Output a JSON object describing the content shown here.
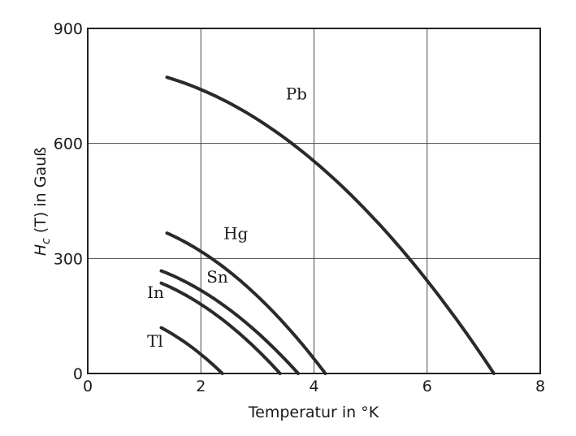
{
  "chart_data": {
    "type": "line",
    "title": "",
    "xlabel": "Temperatur in °K",
    "ylabel_parts": {
      "h": "H",
      "sub": "c",
      "t": " (T)",
      "unit": " in Gauß"
    },
    "xlim": [
      0,
      8
    ],
    "ylim": [
      0,
      900
    ],
    "xticks": [
      0,
      2,
      4,
      6,
      8
    ],
    "yticks": [
      0,
      300,
      600,
      900
    ],
    "grid": true,
    "legend": "none",
    "series": [
      {
        "name": "Pb",
        "tc": 7.18,
        "h0": 803,
        "x_start": 1.4
      },
      {
        "name": "Hg",
        "tc": 4.2,
        "h0": 412,
        "x_start": 1.4
      },
      {
        "name": "Sn",
        "tc": 3.72,
        "h0": 305,
        "x_start": 1.3
      },
      {
        "name": "In",
        "tc": 3.4,
        "h0": 276,
        "x_start": 1.3
      },
      {
        "name": "Tl",
        "tc": 2.38,
        "h0": 170,
        "x_start": 1.3
      }
    ],
    "annotations": [
      {
        "text": "Pb",
        "x": 3.5,
        "y": 715
      },
      {
        "text": "Hg",
        "x": 2.4,
        "y": 350
      },
      {
        "text": "Sn",
        "x": 2.1,
        "y": 237
      },
      {
        "text": "In",
        "x": 1.05,
        "y": 197
      },
      {
        "text": "Tl",
        "x": 1.05,
        "y": 70
      }
    ]
  }
}
